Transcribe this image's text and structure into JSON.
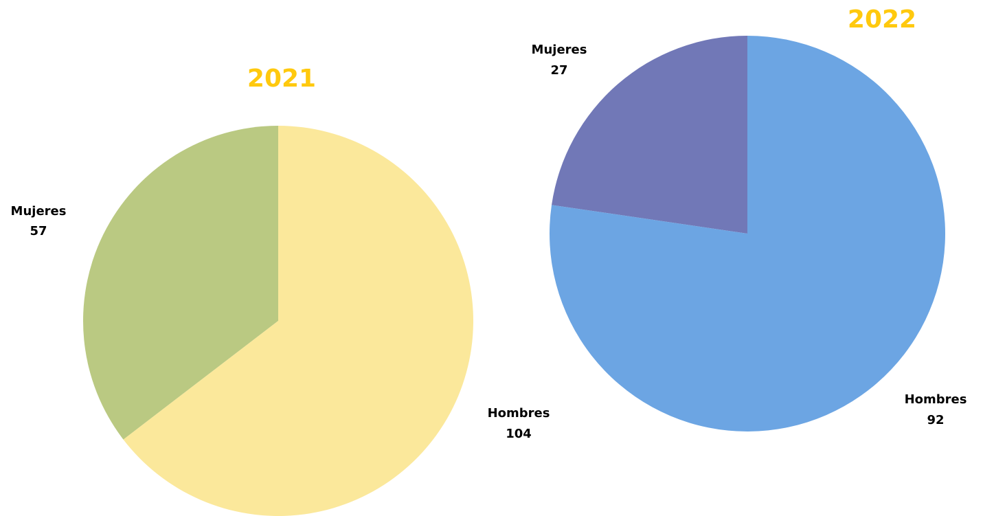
{
  "chart_data": [
    {
      "type": "pie",
      "title": "2021",
      "categories": [
        "Mujeres",
        "Hombres"
      ],
      "values": [
        57,
        104
      ],
      "colors": [
        "#bac982",
        "#fbe89b"
      ],
      "title_color": "#ffc90e",
      "start_angle_deg": 0,
      "direction": "counterclockwise"
    },
    {
      "type": "pie",
      "title": "2022",
      "categories": [
        "Mujeres",
        "Hombres"
      ],
      "values": [
        27,
        92
      ],
      "colors": [
        "#7178b7",
        "#6ca5e3"
      ],
      "title_color": "#ffc90e",
      "start_angle_deg": 0,
      "direction": "counterclockwise"
    }
  ]
}
